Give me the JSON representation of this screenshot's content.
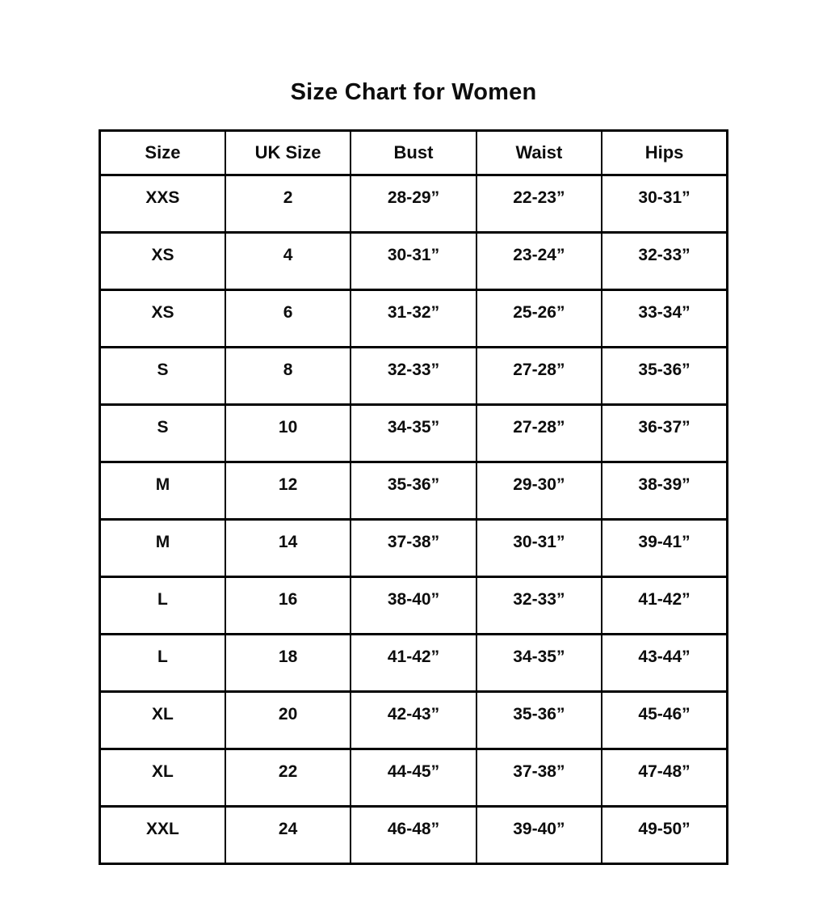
{
  "title": "Size Chart for Women",
  "colors": {
    "background": "#ffffff",
    "text": "#0d0d0d",
    "border": "#000000"
  },
  "chart_data": {
    "type": "table",
    "title": "Size Chart for Women",
    "columns": [
      "Size",
      "UK Size",
      "Bust",
      "Waist",
      "Hips"
    ],
    "rows": [
      [
        "XXS",
        "2",
        "28-29”",
        "22-23”",
        "30-31”"
      ],
      [
        "XS",
        "4",
        "30-31”",
        "23-24”",
        "32-33”"
      ],
      [
        "XS",
        "6",
        "31-32”",
        "25-26”",
        "33-34”"
      ],
      [
        "S",
        "8",
        "32-33”",
        "27-28”",
        "35-36”"
      ],
      [
        "S",
        "10",
        "34-35”",
        "27-28”",
        "36-37”"
      ],
      [
        "M",
        "12",
        "35-36”",
        "29-30”",
        "38-39”"
      ],
      [
        "M",
        "14",
        "37-38”",
        "30-31”",
        "39-41”"
      ],
      [
        "L",
        "16",
        "38-40”",
        "32-33”",
        "41-42”"
      ],
      [
        "L",
        "18",
        "41-42”",
        "34-35”",
        "43-44”"
      ],
      [
        "XL",
        "20",
        "42-43”",
        "35-36”",
        "45-46”"
      ],
      [
        "XL",
        "22",
        "44-45”",
        "37-38”",
        "47-48”"
      ],
      [
        "XXL",
        "24",
        "46-48”",
        "39-40”",
        "49-50”"
      ]
    ]
  }
}
